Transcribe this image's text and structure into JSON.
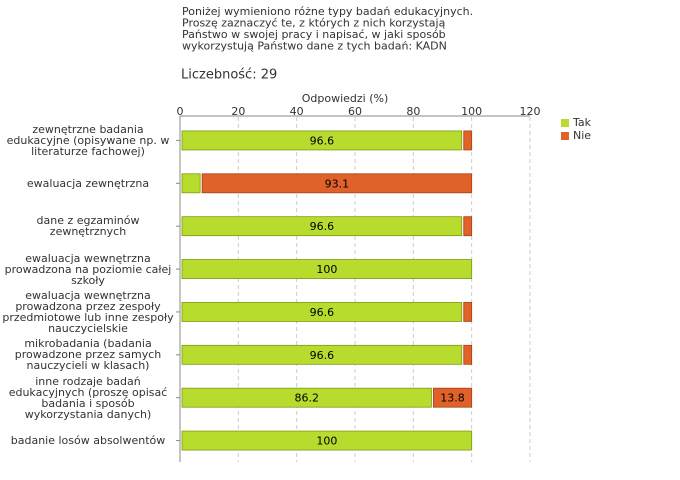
{
  "chart_data": {
    "type": "stacked-bar-horizontal",
    "title": [
      "Poniżej wymieniono różne typy badań edukacyjnych.",
      "Proszę zaznaczyć te, z których z nich korzystają",
      "Państwo w swojej pracy i napisać, w jaki sposób",
      "wykorzystują Państwo dane z tych badań:  KADN"
    ],
    "subtitle": "Liczebność: 29",
    "x_label": "Odpowiedzi (%)",
    "categories": [
      "zewnętrzne badania edukacyjne (opisywane np. w literaturze fachowej)",
      "ewaluacja zewnętrzna",
      "dane z egzaminów zewnętrznych",
      "ewaluacja wewnętrzna prowadzona na poziomie całej szkoły",
      "ewaluacja wewnętrzna prowadzona przez zespoły przedmiotowe lub inne zespoły nauczycielskie",
      "mikrobadania (badania prowadzone przez samych nauczycieli w klasach)",
      "inne rodzaje badań edukacyjnych (proszę opisać badania i sposób wykorzystania danych)",
      "badanie losów absolwentów"
    ],
    "series": [
      {
        "name": "Tak",
        "color": "#b8dc2e",
        "values": [
          96.6,
          6.9,
          96.6,
          100,
          96.6,
          96.6,
          86.2,
          100
        ]
      },
      {
        "name": "Nie",
        "color": "#e0622a",
        "values": [
          3.4,
          93.1,
          3.4,
          0,
          3.4,
          3.4,
          13.8,
          0
        ]
      }
    ],
    "xlim": [
      0,
      120
    ],
    "xticks": [
      0,
      20,
      40,
      60,
      80,
      100,
      120
    ],
    "grid": true,
    "legend": "top-right"
  }
}
